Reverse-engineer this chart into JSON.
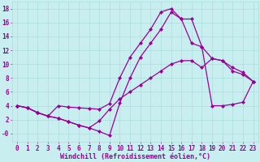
{
  "xlabel": "Windchill (Refroidissement éolien,°C)",
  "bg_color": "#c8eef0",
  "line_color": "#990099",
  "grid_color": "#aadddd",
  "xlim": [
    -0.5,
    23.5
  ],
  "ylim": [
    -1.2,
    19
  ],
  "xticks": [
    0,
    1,
    2,
    3,
    4,
    5,
    6,
    7,
    8,
    9,
    10,
    11,
    12,
    13,
    14,
    15,
    16,
    17,
    18,
    19,
    20,
    21,
    22,
    23
  ],
  "yticks": [
    0,
    2,
    4,
    6,
    8,
    10,
    12,
    14,
    16,
    18
  ],
  "ytick_labels": [
    "-0",
    "2",
    "4",
    "6",
    "8",
    "10",
    "12",
    "14",
    "16",
    "18"
  ],
  "curve1_x": [
    0,
    1,
    2,
    3,
    4,
    5,
    6,
    7,
    8,
    9,
    10,
    11,
    12,
    13,
    14,
    15,
    16,
    17,
    18,
    19,
    20,
    21,
    22,
    23
  ],
  "curve1_y": [
    4.0,
    3.7,
    3.0,
    2.5,
    4.0,
    3.8,
    3.7,
    3.6,
    3.5,
    4.3,
    8.0,
    11.0,
    13.0,
    15.0,
    17.5,
    18.0,
    16.5,
    13.0,
    12.5,
    10.8,
    10.5,
    9.5,
    8.8,
    7.5
  ],
  "curve2_x": [
    0,
    1,
    2,
    3,
    4,
    5,
    6,
    7,
    8,
    9,
    10,
    11,
    12,
    13,
    14,
    15,
    16,
    17,
    18,
    19,
    20,
    21,
    22,
    23
  ],
  "curve2_y": [
    4.0,
    3.7,
    3.0,
    2.5,
    2.2,
    1.7,
    1.2,
    0.8,
    0.3,
    -0.3,
    4.4,
    8.0,
    11.0,
    13.0,
    15.0,
    17.5,
    16.5,
    16.5,
    12.5,
    4.0,
    4.0,
    4.2,
    4.5,
    7.5
  ],
  "curve3_x": [
    0,
    1,
    2,
    3,
    4,
    5,
    6,
    7,
    8,
    9,
    10,
    11,
    12,
    13,
    14,
    15,
    16,
    17,
    18,
    19,
    20,
    21,
    22,
    23
  ],
  "curve3_y": [
    4.0,
    3.7,
    3.0,
    2.5,
    2.2,
    1.7,
    1.2,
    0.8,
    1.8,
    3.5,
    5.0,
    6.0,
    7.0,
    8.0,
    9.0,
    10.0,
    10.5,
    10.5,
    9.5,
    10.8,
    10.5,
    9.0,
    8.5,
    7.5
  ],
  "marker": "D",
  "markersize": 2.2,
  "linewidth": 0.9,
  "xlabel_fontsize": 6.0,
  "tick_fontsize": 5.5
}
